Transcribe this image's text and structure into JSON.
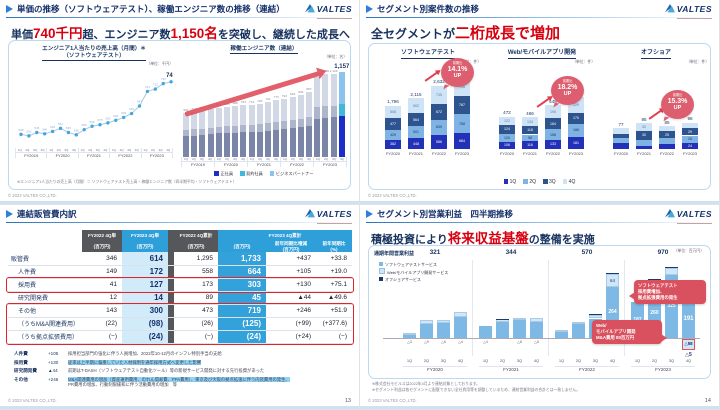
{
  "brand": {
    "name": "VALTES"
  },
  "page": {
    "copyright": "© 2023 VALTES CO.,LTD."
  },
  "slides": {
    "s1": {
      "title": "単価の推移（ソフトウェアテスト）、稼働エンジニア数の推移（連結）",
      "headline": [
        {
          "t": "単価",
          "em": false
        },
        {
          "t": "740千円",
          "em": true
        },
        {
          "t": "超、エンジニア数",
          "em": false
        },
        {
          "t": "1,150名",
          "em": true
        },
        {
          "t": "を突破し、継続した成長へ",
          "em": false
        }
      ],
      "footnote": "※エンジニア1人当たりの売上高（月間）＝ ソフトウェアテスト売上高 ÷ 稼働エンジニア数（四半期平均・ソフトウェアテスト）"
    },
    "s2": {
      "title": "セグメント別案件数の推移",
      "headline": [
        {
          "t": "全セグメントが",
          "em": false
        },
        {
          "t": "二桁成長で増加",
          "em": true
        }
      ]
    },
    "s3": {
      "title": "連結販管費内訳",
      "page": "13",
      "table": {
        "col_headers": [
          "FY2022 4Q単",
          "FY2023 4Q単",
          "FY2022 4Q累計",
          "FY2023 4Q累計"
        ],
        "sub_headers": [
          "(百万円)",
          "(百万円)",
          "(百万円)",
          "(百万円)",
          "前年同期比増減\n(百万円)",
          "前年同期比\n(%)"
        ],
        "rows": [
          {
            "label": "販管費",
            "indent": 0,
            "values": [
              "346",
              "614",
              "1,295",
              "1,733",
              "+437",
              "+33.8"
            ],
            "box": ""
          },
          {
            "label": "人件費",
            "indent": 1,
            "values": [
              "149",
              "172",
              "558",
              "664",
              "+105",
              "+19.0"
            ],
            "box": ""
          },
          {
            "label": "採用費",
            "indent": 1,
            "values": [
              "41",
              "127",
              "173",
              "303",
              "+130",
              "+75.1"
            ],
            "box": "a"
          },
          {
            "label": "研究開発費",
            "indent": 1,
            "values": [
              "12",
              "14",
              "89",
              "45",
              "▲44",
              "▲49.6"
            ],
            "box": ""
          },
          {
            "label": "その他",
            "indent": 1,
            "values": [
              "143",
              "300",
              "473",
              "719",
              "+246",
              "+51.9"
            ],
            "box": "b"
          },
          {
            "label": "（うちM&A関連費用）",
            "indent": 1,
            "values": [
              "(22)",
              "(98)",
              "(26)",
              "(125)",
              "(+99)",
              "(+377.6)"
            ],
            "box": "b"
          },
          {
            "label": "（うち拠点拡張費用）",
            "indent": 1,
            "values": [
              "(−)",
              "(24)",
              "(−)",
              "(24)",
              "(+24)",
              "(−)"
            ],
            "box": "b"
          }
        ]
      },
      "notes": [
        {
          "label": "人件費",
          "delta": "+105",
          "text": "採用担当部門の強化に伴う人員増加、2022年10-12月のインフレ特別手当の支給",
          "hl": false
        },
        {
          "label": "採用費",
          "delta": "+130",
          "text": "従来は上半期に偏重していた人材採用を通年採用方式へ変更した影響",
          "hl": true
        },
        {
          "label": "研究開発費",
          "delta": "▲44",
          "text": "前期はT-DASH（ソフトウェアテスト自動化ツール）等の新規サービス開発に対する先行投資があった",
          "hl": false
        },
        {
          "label": "その他",
          "delta": "+246",
          "text": "M&A関連費用の増加（資産運用費用、のれん償却費、PPA費用）、東京及び大阪の拠点拡張に伴う内装費用の発生、",
          "text2": "PR費用の増加、行動制限緩和に伴う活動費用の増加　等",
          "hl": "first"
        }
      ]
    },
    "s4": {
      "title": "セグメント別営業利益　四半期推移",
      "page": "14",
      "headline": [
        {
          "t": "積極投資により",
          "em": false
        },
        {
          "t": "将来収益基盤",
          "em": true
        },
        {
          "t": "の整備を実施",
          "em": false
        }
      ],
      "footnotes": [
        "※株式会社モビルスは2022年4月より連結対象としております。",
        "※セグメント利益は各セグメントに配賦できない全社費用等を調整しているため、連結営業利益の合計とは一致しません。"
      ]
    }
  },
  "chart_data": [
    {
      "id": "unit_price_line",
      "type": "line",
      "title": "エンジニア1人当たりの売上高（月間）＊\n（ソフトウェアテスト）",
      "unit": "（単位：千円）",
      "x_groups": [
        "FY2019",
        "FY2020",
        "FY2021",
        "FY2022",
        "FY2023"
      ],
      "quarters": [
        "1Q",
        "2Q",
        "3Q",
        "4Q"
      ],
      "values": [
        538,
        532,
        545,
        540,
        549,
        561,
        545,
        536,
        556,
        569,
        575,
        582,
        592,
        603,
        618,
        647,
        703,
        712,
        733,
        740
      ],
      "last_label": "740",
      "ylim": [
        500,
        780
      ],
      "grid": false
    },
    {
      "id": "engineers_stacked",
      "type": "bar",
      "title": "稼働エンジニア数（連結）",
      "unit": "（単位：名）",
      "x_groups": [
        "FY2019",
        "FY2020",
        "FY2021",
        "FY2022",
        "FY2023"
      ],
      "quarters": [
        "1Q",
        "2Q",
        "3Q",
        "4Q"
      ],
      "series": [
        {
          "name": "正社員",
          "values": [
            288,
            294,
            299,
            311,
            323,
            329,
            330,
            337,
            342,
            348,
            356,
            371,
            381,
            393,
            406,
            426,
            522,
            538,
            540,
            555
          ]
        },
        {
          "name": "契約社員",
          "values": [
            84,
            86,
            87,
            91,
            94,
            96,
            96,
            98,
            100,
            102,
            104,
            108,
            111,
            115,
            118,
            124,
            152,
            157,
            158,
            162
          ]
        },
        {
          "name": "ビジネスパートナー",
          "values": [
            229,
            232,
            236,
            246,
            255,
            260,
            262,
            268,
            271,
            276,
            281,
            294,
            301,
            310,
            322,
            337,
            413,
            425,
            428,
            440
          ]
        }
      ],
      "totals": [
        601,
        612,
        622,
        648,
        672,
        685,
        688,
        703,
        713,
        726,
        741,
        773,
        793,
        818,
        846,
        887,
        1087,
        1120,
        1126,
        1157
      ],
      "highlight_total": "1,157"
    },
    {
      "id": "projects_by_segment",
      "type": "bar",
      "legend": [
        "1Q",
        "2Q",
        "3Q",
        "4Q"
      ],
      "charts": [
        {
          "title": "ソフトウェアテスト",
          "unit": "（単位：件）",
          "categories": [
            "FY2020",
            "FY2021",
            "FY2022",
            "FY2023"
          ],
          "series": [
            {
              "name": "1Q",
              "values": [
                382,
                448,
                586,
                684
              ]
            },
            {
              "name": "2Q",
              "values": [
                429,
                501,
                639,
                758
              ]
            },
            {
              "name": "3Q",
              "values": [
                477,
                564,
                672,
                767
              ]
            },
            {
              "name": "4Q",
              "values": [
                508,
                602,
                735,
                795
              ]
            }
          ],
          "totals": [
            "1,796",
            "2,115",
            "2,632",
            "3,004"
          ],
          "badge": {
            "pre": "前期比",
            "pct": "14.1%",
            "up": "UP"
          }
        },
        {
          "title": "Web/モバイルアプリ開発",
          "unit": "（単位：件）",
          "categories": [
            "FY2020",
            "FY2021",
            "FY2022",
            "FY2023"
          ],
          "series": [
            {
              "name": "1Q",
              "values": [
                106,
                116,
                133,
                181
              ]
            },
            {
              "name": "2Q",
              "values": [
                120,
                98,
                156,
                186
              ]
            },
            {
              "name": "3Q",
              "values": [
                124,
                118,
                164,
                170
              ]
            },
            {
              "name": "4Q",
              "values": [
                122,
                134,
                195,
                229
              ]
            }
          ],
          "totals": [
            "472",
            "466",
            "648",
            "766"
          ],
          "badge": {
            "pre": "前期比",
            "pct": "18.2%",
            "up": "UP"
          }
        },
        {
          "title": "オフショア",
          "unit": "（単位：件）",
          "categories": [
            "FY2020",
            "FY2021",
            "FY2022",
            "FY2023"
          ],
          "series": [
            {
              "name": "1Q",
              "values": [
                21,
                13,
                18,
                24
              ]
            },
            {
              "name": "2Q",
              "values": [
                18,
                22,
                22,
                26
              ]
            },
            {
              "name": "3Q",
              "values": [
                17,
                30,
                25,
                29
              ]
            },
            {
              "name": "4Q",
              "values": [
                21,
                30,
                20,
                19
              ]
            }
          ],
          "totals": [
            "77",
            "95",
            "85",
            "98"
          ],
          "badge": {
            "pre": "前期比",
            "pct": "15.3%",
            "up": "UP"
          }
        }
      ]
    },
    {
      "id": "segment_op_profit",
      "type": "bar",
      "annual_label": "通期年間営業利益",
      "annual_values": [
        "321",
        "344",
        "570",
        "970"
      ],
      "unit": "（単位：百万円）",
      "x_groups": [
        "FY2020",
        "FY2021",
        "FY2022",
        "FY2023"
      ],
      "quarters": [
        "1Q",
        "2Q",
        "3Q",
        "4Q"
      ],
      "series": [
        {
          "name": "ソフトウェアテストサービス",
          "values": [
            20,
            70,
            75,
            110,
            60,
            80,
            93,
            80,
            36,
            70,
            100,
            264,
            187,
            260,
            325,
            191
          ]
        },
        {
          "name": "Web/モバイルアプリ開発サービス",
          "values": [
            5,
            20,
            18,
            25,
            0,
            15,
            10,
            24,
            6,
            12,
            18,
            64,
            0,
            37,
            36,
            -58
          ]
        },
        {
          "name": "オフショアサービス",
          "values": [
            -3,
            -9,
            -6,
            -4,
            -4,
            2,
            -8,
            -8,
            -2,
            -2,
            2,
            2,
            -8,
            1,
            4,
            -5
          ]
        }
      ],
      "last_bar_labels": {
        "st": "191",
        "wm": "△58",
        "off": "△5"
      },
      "callouts": [
        {
          "lines": [
            "ソフトウェアテスト",
            "採用費増加、",
            "拠点拡張費用の発生"
          ]
        },
        {
          "lines": [
            "Web/",
            "モバイルアプリ開発",
            "M&A費用 80百万円"
          ]
        }
      ]
    }
  ],
  "colors": {
    "navy": "#17325f",
    "red": "#d7000f",
    "q1": "#2231b8",
    "q2": "#7fb3e3",
    "q3": "#2e5490",
    "q4": "#cfe3f6",
    "eng_muted": [
      "#7b85a8",
      "#aeb6cc",
      "#d3d8e6"
    ],
    "eng_vivid": [
      "#1b2ec9",
      "#3fb9d9",
      "#8ac4ee"
    ],
    "op_st": "#7db9e4",
    "op_wm": "#cfe7f8",
    "op_off": "#1d3a6e",
    "arrow": "#e0525f",
    "badge": "#dd5f6f"
  }
}
